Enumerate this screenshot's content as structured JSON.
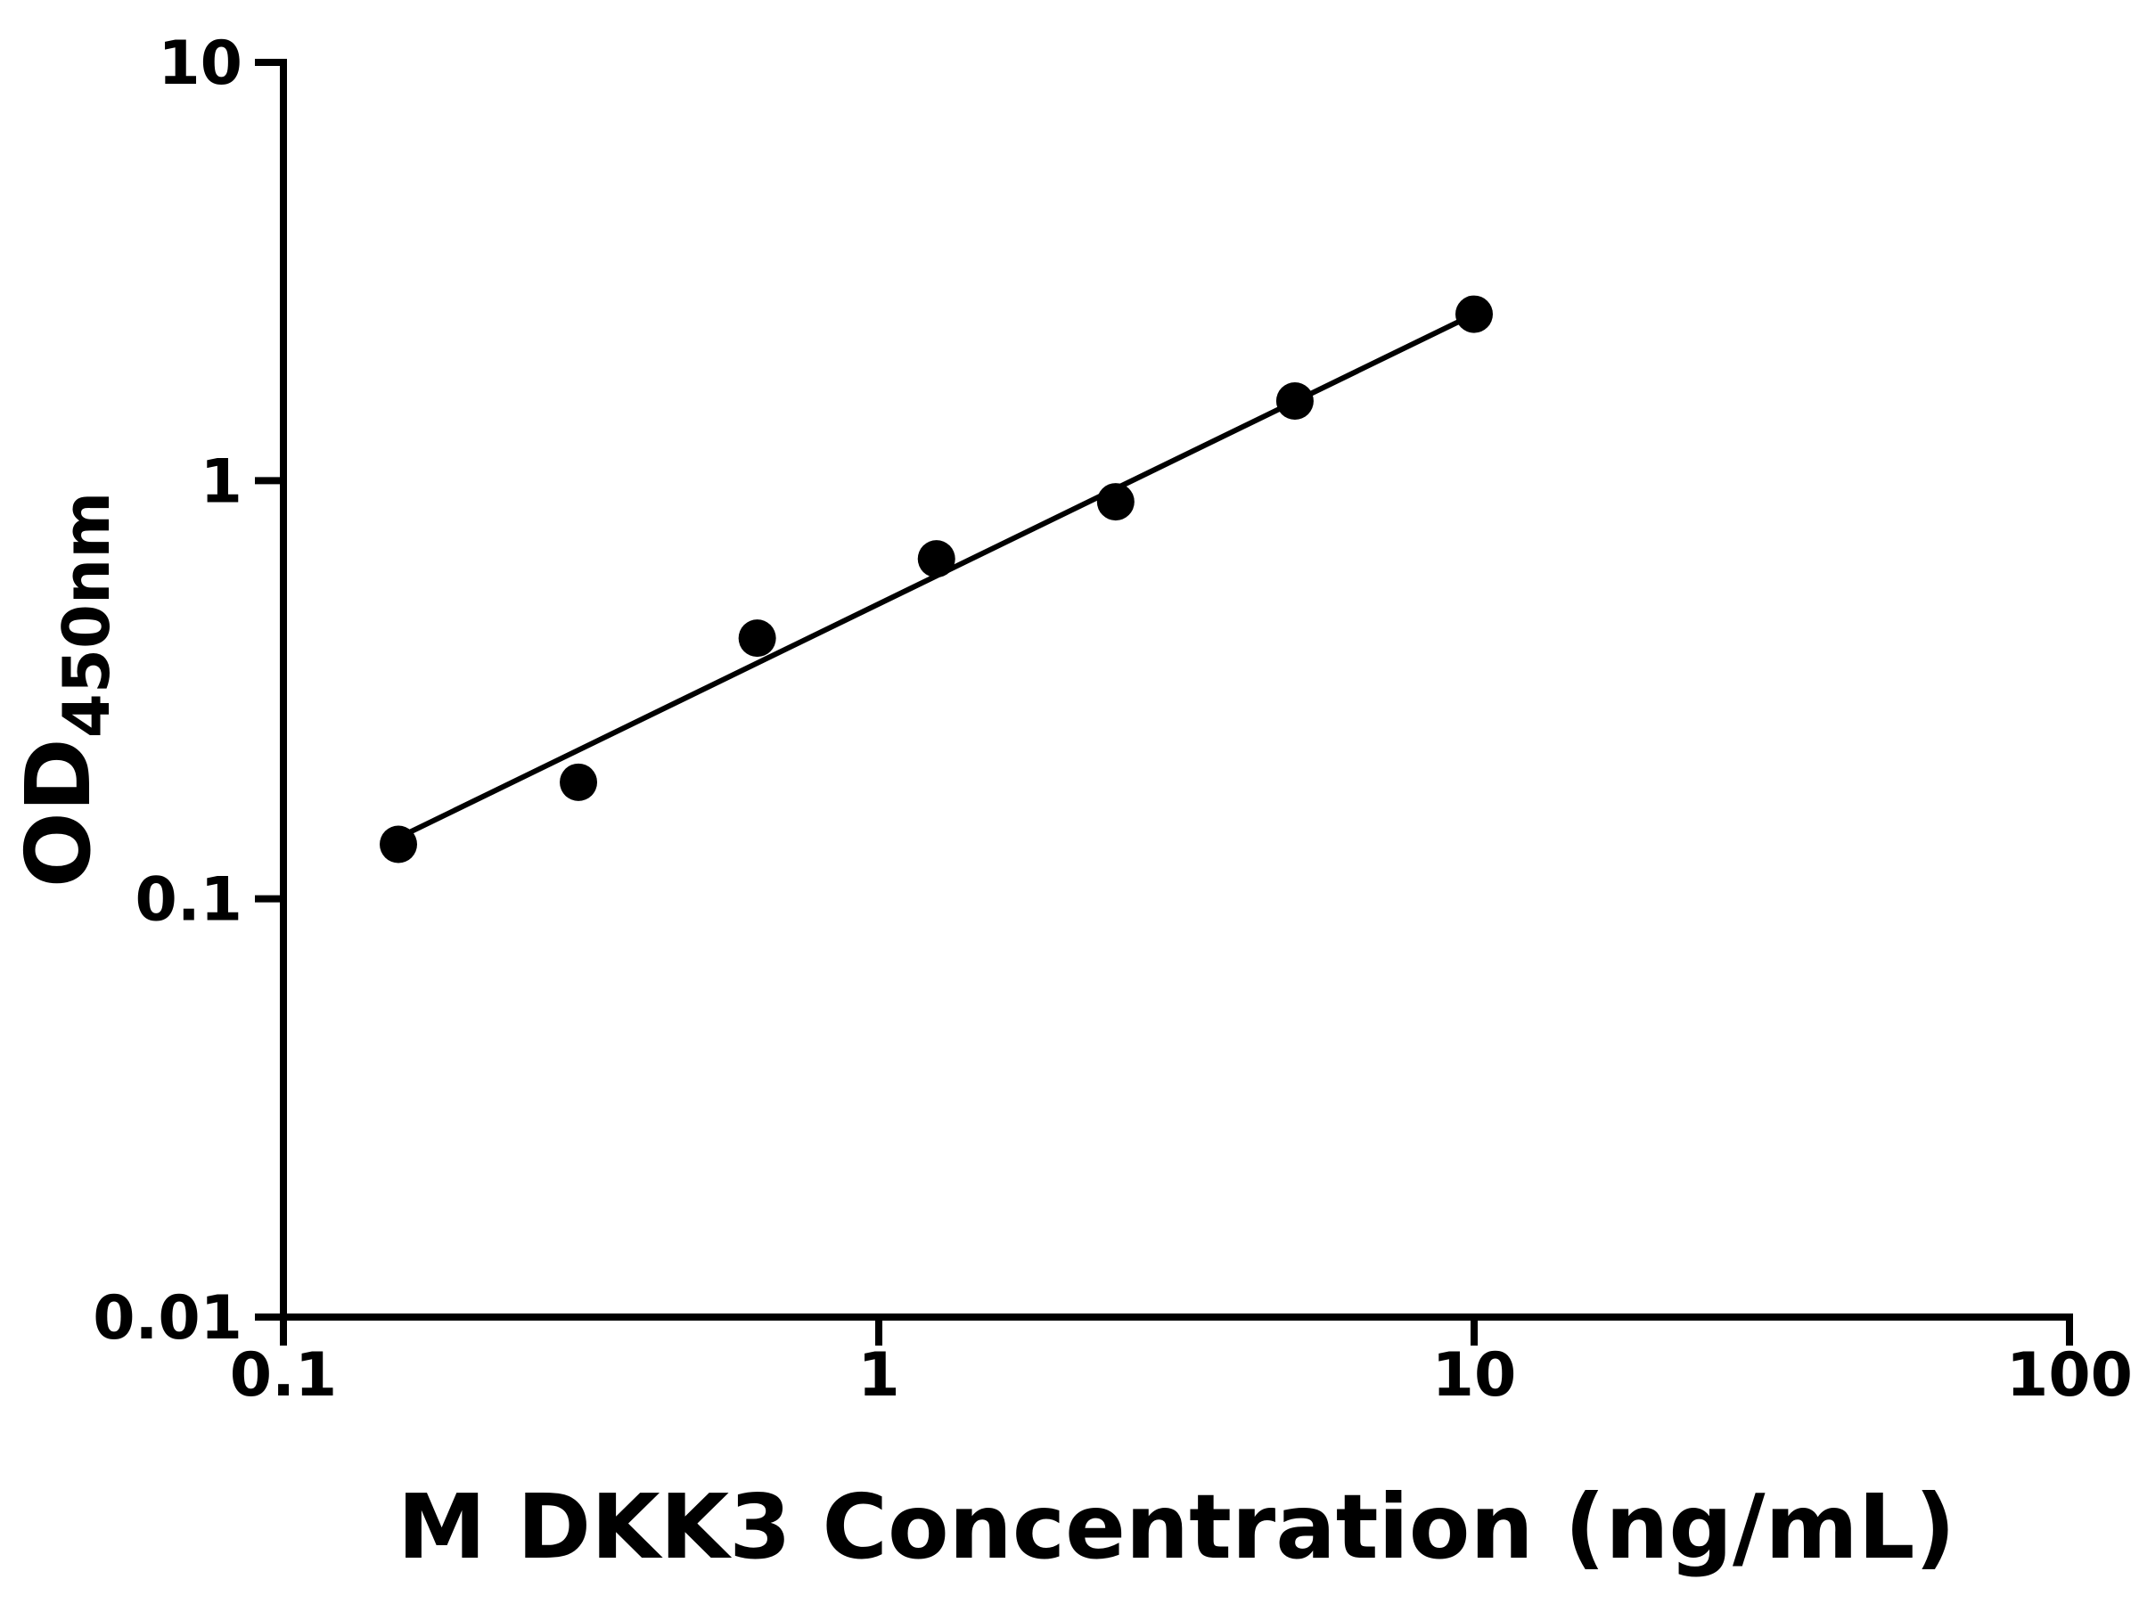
{
  "figure": {
    "background_color": "#ffffff"
  },
  "chart_data": {
    "type": "scatter",
    "title": "",
    "xlabel": "M DKK3 Concentration (ng/mL)",
    "ylabel_main": "OD",
    "ylabel_sub": "450nm",
    "x_scale": "log",
    "y_scale": "log",
    "xlim": [
      0.1,
      100
    ],
    "ylim": [
      0.01,
      10
    ],
    "x_ticks": [
      0.1,
      1,
      10,
      100
    ],
    "x_tick_labels": [
      "0.1",
      "1",
      "10",
      "100"
    ],
    "y_ticks": [
      0.01,
      0.1,
      1,
      10
    ],
    "y_tick_labels": [
      "0.01",
      "0.1",
      "1",
      "10"
    ],
    "grid": false,
    "legend": false,
    "marker_color": "#000000",
    "line_color": "#000000",
    "axis_color": "#000000",
    "points": [
      {
        "x": 0.156,
        "y": 0.135
      },
      {
        "x": 0.313,
        "y": 0.19
      },
      {
        "x": 0.625,
        "y": 0.42
      },
      {
        "x": 1.25,
        "y": 0.65
      },
      {
        "x": 2.5,
        "y": 0.89
      },
      {
        "x": 5,
        "y": 1.55
      },
      {
        "x": 10,
        "y": 2.5
      }
    ],
    "trendline": {
      "x1": 0.156,
      "y1": 0.14,
      "x2": 10,
      "y2": 2.5
    }
  }
}
